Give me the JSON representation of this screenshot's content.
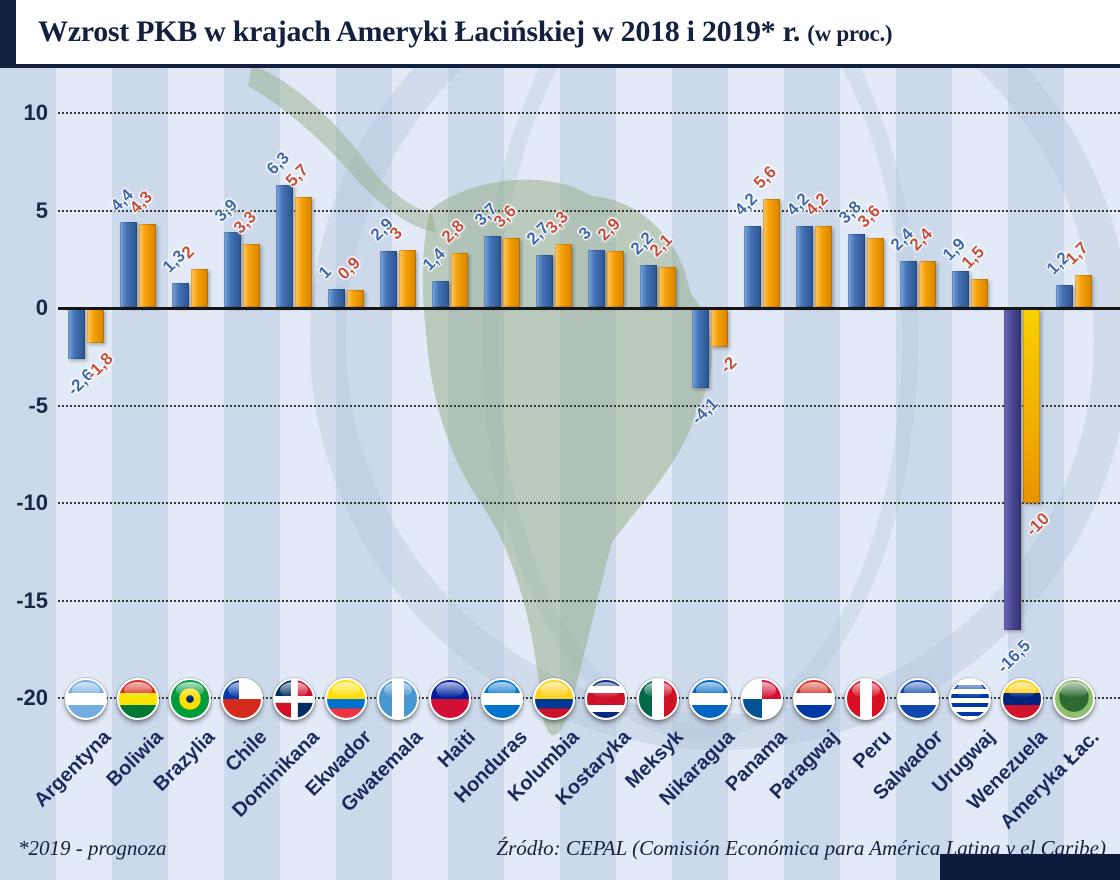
{
  "header": {
    "title_main": "Wzrost PKB w krajach Ameryki Łacińskiej w 2018 i 2019* r.",
    "title_suffix": "(w proc.)"
  },
  "footer": {
    "note": "*2019 - prognoza",
    "source": "Źródło: CEPAL (Comisión Económica para América Latina y el Caribe)"
  },
  "colors": {
    "bar_2018": "linear-gradient(to right, #7fa8dc 0%, #4372b4 40%, #2c5392 100%)",
    "bar_2019": "linear-gradient(to right, #ffc763 0%, #f5a008 40%, #d98400 100%)",
    "label_2018": "#3f69ac",
    "label_2019": "#c44f3f",
    "axis_text": "#1a2744",
    "title_text": "#13203f"
  },
  "chart_data": {
    "type": "bar",
    "title": "Wzrost PKB w krajach Ameryki Łacińskiej w 2018 i 2019* r. (w proc.)",
    "xlabel": "",
    "ylabel": "",
    "ylim": [
      -20,
      10
    ],
    "grid": "dotted horizontal",
    "legend_position": "none",
    "y_ticks": [
      10,
      5,
      0,
      -5,
      -10,
      -15,
      -20
    ],
    "categories": [
      "Argentyna",
      "Boliwia",
      "Brazylia",
      "Chile",
      "Dominikana",
      "Ekwador",
      "Gwatemala",
      "Haiti",
      "Honduras",
      "Kolumbia",
      "Kostaryka",
      "Meksyk",
      "Nikaragua",
      "Panama",
      "Paragwaj",
      "Peru",
      "Salwador",
      "Urugwaj",
      "Wenezuela",
      "Ameryka Łac."
    ],
    "series": [
      {
        "name": "2018",
        "values": [
          -2.6,
          4.4,
          1.3,
          3.9,
          6.3,
          1,
          2.9,
          1.4,
          3.7,
          2.7,
          3,
          2.2,
          -4.1,
          4.2,
          4.2,
          3.8,
          2.4,
          1.9,
          -16.5,
          1.2
        ]
      },
      {
        "name": "2019*",
        "values": [
          -1.8,
          4.3,
          2,
          3.3,
          5.7,
          0.9,
          3,
          2.8,
          3.6,
          3.3,
          2.9,
          2.1,
          -2,
          5.6,
          4.2,
          3.6,
          2.4,
          1.5,
          -10,
          1.7
        ]
      }
    ],
    "countries": [
      {
        "label": "Argentyna",
        "v2018": -2.6,
        "v2019": -1.8,
        "d2018": "-2,6",
        "d2019": "-1,8",
        "flag_css": "linear-gradient(to bottom, #74acdf 0 34%, #ffffff 34% 66%, #74acdf 66%)"
      },
      {
        "label": "Boliwia",
        "v2018": 4.4,
        "v2019": 4.3,
        "d2018": "4,4",
        "d2019": "4,3",
        "flag_css": "linear-gradient(to bottom, #d52b1e 0 34%, #f9e300 34% 66%, #007934 66%)"
      },
      {
        "label": "Brazylia",
        "v2018": 1.3,
        "v2019": 2,
        "d2018": "1,3",
        "d2019": "2",
        "flag_css": "radial-gradient(circle at 50% 50%, #002776 0 14%, #fedf00 14% 40%, #009c3b 40%)"
      },
      {
        "label": "Chile",
        "v2018": 3.9,
        "v2019": 3.3,
        "d2018": "3,9",
        "d2019": "3,3",
        "flag_css": "linear-gradient(to right, #0039a6 0 42%, rgba(0,0,0,0) 42%) 0 0/100% 50% no-repeat, linear-gradient(to bottom, #ffffff 0 50%, #d52b1e 50%)"
      },
      {
        "label": "Dominikana",
        "v2018": 6.3,
        "v2019": 5.7,
        "d2018": "6,3",
        "d2019": "5,7",
        "flag_css": "linear-gradient(#ffffff,#ffffff) 50% 50%/100% 18% no-repeat, linear-gradient(#ffffff,#ffffff) 50% 50%/18% 100% no-repeat, conic-gradient(#ce1126 0 90deg, #002d62 90deg 180deg, #ce1126 180deg 270deg, #002d62 270deg)"
      },
      {
        "label": "Ekwador",
        "v2018": 1,
        "v2019": 0.9,
        "d2018": "1",
        "d2019": "0,9",
        "flag_css": "linear-gradient(to bottom, #ffdd00 0 50%, #0072ce 50% 75%, #ef3340 75%)"
      },
      {
        "label": "Gwatemala",
        "v2018": 2.9,
        "v2019": 3,
        "d2018": "2,9",
        "d2019": "3",
        "flag_css": "linear-gradient(to right, #4997d0 0 34%, #ffffff 34% 66%, #4997d0 66%)"
      },
      {
        "label": "Haiti",
        "v2018": 1.4,
        "v2019": 2.8,
        "d2018": "1,4",
        "d2019": "2,8",
        "flag_css": "linear-gradient(to bottom, #00209f 0 50%, #d21034 50%)"
      },
      {
        "label": "Honduras",
        "v2018": 3.7,
        "v2019": 3.6,
        "d2018": "3,7",
        "d2019": "3,6",
        "flag_css": "linear-gradient(to bottom, #0073cf 0 34%, #ffffff 34% 66%, #0073cf 66%)"
      },
      {
        "label": "Kolumbia",
        "v2018": 2.7,
        "v2019": 3.3,
        "d2018": "2,7",
        "d2019": "3,3",
        "flag_css": "linear-gradient(to bottom, #fcd116 0 50%, #003893 50% 75%, #ce1126 75%)"
      },
      {
        "label": "Kostaryka",
        "v2018": 3,
        "v2019": 2.9,
        "d2018": "3",
        "d2019": "2,9",
        "flag_css": "linear-gradient(to bottom, #002b7f 0 16%, #ffffff 16% 34%, #ce1126 34% 66%, #ffffff 66% 84%, #002b7f 84%)"
      },
      {
        "label": "Meksyk",
        "v2018": 2.2,
        "v2019": 2.1,
        "d2018": "2,2",
        "d2019": "2,1",
        "flag_css": "linear-gradient(to right, #006847 0 34%, #ffffff 34% 66%, #ce1126 66%)"
      },
      {
        "label": "Nikaragua",
        "v2018": -4.1,
        "v2019": -2,
        "d2018": "-4,1",
        "d2019": "-2",
        "flag_css": "linear-gradient(to bottom, #0067c6 0 34%, #ffffff 34% 66%, #0067c6 66%)"
      },
      {
        "label": "Panama",
        "v2018": 4.2,
        "v2019": 5.6,
        "d2018": "4,2",
        "d2019": "5,6",
        "flag_css": "conic-gradient(#d21034 0 90deg, #ffffff 90deg 180deg, #005293 180deg 270deg, #ffffff 270deg)"
      },
      {
        "label": "Paragwaj",
        "v2018": 4.2,
        "v2019": 4.2,
        "d2018": "4,2",
        "d2019": "4,2",
        "flag_css": "linear-gradient(to bottom, #d52b1e 0 34%, #ffffff 34% 66%, #0038a8 66%)"
      },
      {
        "label": "Peru",
        "v2018": 3.8,
        "v2019": 3.6,
        "d2018": "3,8",
        "d2019": "3,6",
        "flag_css": "linear-gradient(to right, #d91023 0 34%, #ffffff 34% 66%, #d91023 66%)"
      },
      {
        "label": "Salwador",
        "v2018": 2.4,
        "v2019": 2.4,
        "d2018": "2,4",
        "d2019": "2,4",
        "flag_css": "linear-gradient(to bottom, #0f47af 0 34%, #ffffff 34% 66%, #0f47af 66%)"
      },
      {
        "label": "Urugwaj",
        "v2018": 1.9,
        "v2019": 1.5,
        "d2018": "1,9",
        "d2019": "1,5",
        "flag_css": "repeating-linear-gradient(to bottom, #ffffff 0 5px, #0038a8 5px 9px)"
      },
      {
        "label": "Wenezuela",
        "v2018": -16.5,
        "v2019": -10,
        "d2018": "-16,5",
        "d2019": "-10",
        "flag_css": "linear-gradient(to bottom, #ffcc00 0 34%, #00247d 34% 66%, #cf142b 66%)",
        "bar2018_css": "linear-gradient(to right, #6a68b8 0%, #4b4996 45%, #343271 100%)",
        "bar2019_css": "linear-gradient(to bottom, #f8d000 0%, #f2a702 70%, #e89200 100%)"
      },
      {
        "label": "Ameryka Łac.",
        "v2018": 1.2,
        "v2019": 1.7,
        "d2018": "1,2",
        "d2019": "1,7",
        "flag_css": "radial-gradient(circle at 50% 45%, #2e6b33 0 52%, #8fbf6f 52% 100%)"
      }
    ]
  }
}
